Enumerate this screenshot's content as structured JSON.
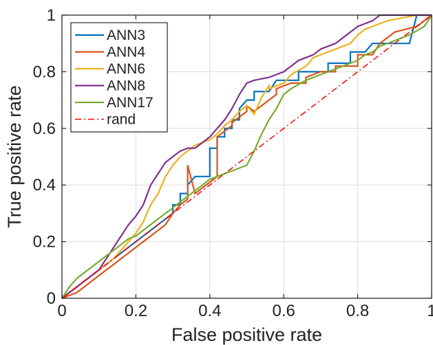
{
  "chart_data": {
    "type": "line",
    "title": "",
    "xlabel": "False positive rate",
    "ylabel": "True positive rate",
    "xlim": [
      0,
      1
    ],
    "ylim": [
      0,
      1
    ],
    "x_ticks": [
      "0",
      "0.2",
      "0.4",
      "0.6",
      "0.8",
      "1"
    ],
    "y_ticks": [
      "0",
      "0.2",
      "0.4",
      "0.6",
      "0.8",
      "1"
    ],
    "grid": true,
    "legend_position": "top-left",
    "series": [
      {
        "name": "ANN3",
        "color": "#0072BD",
        "x": [
          0,
          0.02,
          0.04,
          0.06,
          0.08,
          0.1,
          0.12,
          0.14,
          0.16,
          0.18,
          0.2,
          0.22,
          0.24,
          0.26,
          0.28,
          0.3,
          0.3,
          0.32,
          0.32,
          0.34,
          0.34,
          0.36,
          0.4,
          0.4,
          0.42,
          0.42,
          0.44,
          0.44,
          0.46,
          0.46,
          0.48,
          0.48,
          0.5,
          0.52,
          0.52,
          0.56,
          0.58,
          0.64,
          0.64,
          0.72,
          0.72,
          0.78,
          0.78,
          0.82,
          0.84,
          0.94,
          0.96,
          1.0
        ],
        "y": [
          0,
          0.02,
          0.04,
          0.06,
          0.08,
          0.1,
          0.12,
          0.14,
          0.16,
          0.18,
          0.2,
          0.22,
          0.24,
          0.26,
          0.28,
          0.3,
          0.33,
          0.33,
          0.37,
          0.37,
          0.4,
          0.43,
          0.43,
          0.53,
          0.53,
          0.57,
          0.57,
          0.6,
          0.6,
          0.63,
          0.63,
          0.67,
          0.7,
          0.7,
          0.73,
          0.73,
          0.77,
          0.77,
          0.8,
          0.8,
          0.83,
          0.83,
          0.87,
          0.87,
          0.9,
          0.9,
          1.0,
          1.0
        ]
      },
      {
        "name": "ANN4",
        "color": "#D95319",
        "x": [
          0,
          0.04,
          0.06,
          0.08,
          0.1,
          0.12,
          0.14,
          0.16,
          0.18,
          0.2,
          0.22,
          0.24,
          0.26,
          0.28,
          0.3,
          0.32,
          0.34,
          0.34,
          0.36,
          0.38,
          0.4,
          0.42,
          0.42,
          0.44,
          0.46,
          0.46,
          0.48,
          0.5,
          0.5,
          0.52,
          0.54,
          0.56,
          0.58,
          0.58,
          0.62,
          0.66,
          0.66,
          0.7,
          0.74,
          0.74,
          0.8,
          0.8,
          0.84,
          0.86,
          0.9,
          0.96,
          1.0
        ],
        "y": [
          0,
          0.02,
          0.04,
          0.06,
          0.08,
          0.1,
          0.12,
          0.14,
          0.16,
          0.18,
          0.2,
          0.22,
          0.24,
          0.26,
          0.3,
          0.33,
          0.35,
          0.47,
          0.37,
          0.39,
          0.41,
          0.43,
          0.57,
          0.59,
          0.61,
          0.62,
          0.64,
          0.66,
          0.68,
          0.66,
          0.68,
          0.7,
          0.72,
          0.74,
          0.76,
          0.76,
          0.78,
          0.8,
          0.8,
          0.82,
          0.82,
          0.86,
          0.86,
          0.9,
          0.94,
          0.96,
          1.0
        ]
      },
      {
        "name": "ANN6",
        "color": "#EDB120",
        "x": [
          0,
          0.02,
          0.04,
          0.06,
          0.08,
          0.1,
          0.12,
          0.14,
          0.16,
          0.18,
          0.2,
          0.22,
          0.24,
          0.26,
          0.28,
          0.3,
          0.32,
          0.34,
          0.36,
          0.38,
          0.4,
          0.42,
          0.44,
          0.46,
          0.48,
          0.5,
          0.52,
          0.54,
          0.56,
          0.56,
          0.6,
          0.62,
          0.66,
          0.68,
          0.72,
          0.76,
          0.78,
          0.8,
          0.82,
          0.84,
          0.88,
          0.92,
          0.96,
          1.0
        ],
        "y": [
          0,
          0.02,
          0.04,
          0.06,
          0.08,
          0.1,
          0.12,
          0.14,
          0.17,
          0.2,
          0.23,
          0.27,
          0.33,
          0.37,
          0.43,
          0.47,
          0.5,
          0.52,
          0.54,
          0.55,
          0.56,
          0.58,
          0.61,
          0.63,
          0.66,
          0.68,
          0.65,
          0.71,
          0.75,
          0.74,
          0.76,
          0.79,
          0.82,
          0.85,
          0.87,
          0.89,
          0.9,
          0.93,
          0.95,
          0.96,
          0.98,
          0.99,
          1.0,
          1.0
        ]
      },
      {
        "name": "ANN8",
        "color": "#7E2F8E",
        "x": [
          0,
          0.02,
          0.04,
          0.06,
          0.08,
          0.1,
          0.12,
          0.14,
          0.16,
          0.18,
          0.2,
          0.22,
          0.24,
          0.26,
          0.28,
          0.3,
          0.32,
          0.34,
          0.36,
          0.38,
          0.4,
          0.42,
          0.44,
          0.46,
          0.48,
          0.5,
          0.52,
          0.56,
          0.58,
          0.6,
          0.62,
          0.64,
          0.66,
          0.68,
          0.7,
          0.74,
          0.76,
          0.78,
          0.8,
          0.82,
          0.84,
          0.86,
          0.9,
          0.96,
          1.0
        ],
        "y": [
          0,
          0.02,
          0.04,
          0.06,
          0.08,
          0.1,
          0.14,
          0.18,
          0.22,
          0.26,
          0.29,
          0.33,
          0.4,
          0.44,
          0.48,
          0.5,
          0.52,
          0.53,
          0.53,
          0.55,
          0.57,
          0.6,
          0.63,
          0.67,
          0.72,
          0.76,
          0.77,
          0.78,
          0.79,
          0.8,
          0.82,
          0.84,
          0.85,
          0.86,
          0.88,
          0.9,
          0.92,
          0.94,
          0.96,
          0.97,
          0.98,
          1.0,
          1.0,
          1.0,
          1.0
        ]
      },
      {
        "name": "ANN17",
        "color": "#77AC30",
        "x": [
          0,
          0.02,
          0.04,
          0.06,
          0.08,
          0.1,
          0.12,
          0.14,
          0.16,
          0.18,
          0.2,
          0.22,
          0.24,
          0.26,
          0.28,
          0.3,
          0.32,
          0.34,
          0.36,
          0.38,
          0.4,
          0.42,
          0.44,
          0.46,
          0.48,
          0.5,
          0.52,
          0.54,
          0.56,
          0.58,
          0.6,
          0.62,
          0.66,
          0.7,
          0.74,
          0.8,
          0.82,
          0.84,
          0.86,
          0.9,
          0.94,
          0.98,
          1.0
        ],
        "y": [
          0,
          0.04,
          0.07,
          0.09,
          0.11,
          0.13,
          0.15,
          0.17,
          0.19,
          0.21,
          0.22,
          0.24,
          0.26,
          0.28,
          0.3,
          0.32,
          0.34,
          0.36,
          0.38,
          0.4,
          0.42,
          0.43,
          0.44,
          0.45,
          0.46,
          0.47,
          0.52,
          0.58,
          0.63,
          0.67,
          0.72,
          0.74,
          0.77,
          0.79,
          0.81,
          0.84,
          0.86,
          0.87,
          0.89,
          0.91,
          0.93,
          0.96,
          1.0
        ]
      },
      {
        "name": "rand",
        "color": "#FF0000",
        "style": "dash-dot",
        "x": [
          0,
          1
        ],
        "y": [
          0,
          1
        ]
      }
    ]
  }
}
